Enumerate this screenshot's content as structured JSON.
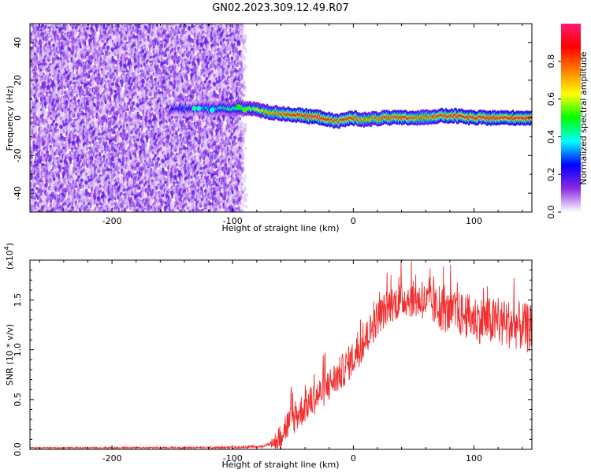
{
  "title": "GN02.2023.309.12.49.R07",
  "chart_data": [
    {
      "type": "heatmap",
      "xlabel": "Height of straight line (km)",
      "ylabel": "Frequency (Hz)",
      "xlim": [
        -268,
        148
      ],
      "ylim": [
        -50,
        50
      ],
      "x_ticks": [
        -200,
        -100,
        0,
        100
      ],
      "y_ticks": [
        -40,
        -20,
        0,
        20,
        40
      ],
      "x_tick_labels": [
        "-200",
        "-100",
        "0",
        "100"
      ],
      "y_tick_labels": [
        "-40",
        "-20",
        "0",
        "20",
        "40"
      ],
      "noise_region_x": [
        -268,
        -95
      ],
      "noise_fade_x": [
        -95,
        -88
      ],
      "ridge_start_x": -150,
      "ridge_points": [
        {
          "x": -140,
          "y": 5,
          "amp": 0.25
        },
        {
          "x": -128,
          "y": 5,
          "amp": 0.3
        },
        {
          "x": -120,
          "y": 5,
          "amp": 0.35
        },
        {
          "x": -100,
          "y": 5,
          "amp": 0.45
        },
        {
          "x": -85,
          "y": 5,
          "amp": 0.55
        },
        {
          "x": -70,
          "y": 3,
          "amp": 0.72
        },
        {
          "x": -55,
          "y": 2,
          "amp": 0.85
        },
        {
          "x": -40,
          "y": 1,
          "amp": 0.9
        },
        {
          "x": -25,
          "y": 0,
          "amp": 0.92
        },
        {
          "x": -15,
          "y": -2,
          "amp": 0.8
        },
        {
          "x": 0,
          "y": 0,
          "amp": 0.88
        },
        {
          "x": 10,
          "y": -1,
          "amp": 0.7
        },
        {
          "x": 25,
          "y": 0,
          "amp": 0.82
        },
        {
          "x": 40,
          "y": 0,
          "amp": 0.85
        },
        {
          "x": 55,
          "y": 0,
          "amp": 0.8
        },
        {
          "x": 70,
          "y": 1,
          "amp": 0.85
        },
        {
          "x": 85,
          "y": 1,
          "amp": 0.9
        },
        {
          "x": 100,
          "y": 0,
          "amp": 0.92
        },
        {
          "x": 120,
          "y": 0,
          "amp": 0.93
        },
        {
          "x": 148,
          "y": 0,
          "amp": 0.93
        }
      ],
      "colorbar": {
        "label": "Normalized spectral amplitude",
        "range": [
          0,
          1
        ],
        "ticks": [
          0.0,
          0.2,
          0.4,
          0.6,
          0.8
        ],
        "tick_labels": [
          "0.0",
          "0.2",
          "0.4",
          "0.6",
          "0.8"
        ],
        "stops": [
          "#ffffff",
          "#8a2be2",
          "#0000ff",
          "#00ffff",
          "#00ff00",
          "#ffff00",
          "#ff8000",
          "#ff0000",
          "#ff1a6e"
        ]
      }
    },
    {
      "type": "line",
      "xlabel": "Height of straight line (km)",
      "ylabel": "SNR (10 * v/v)",
      "y_multiplier_label": "(x10",
      "y_multiplier_exp": "4",
      "y_multiplier_close": ")",
      "xlim": [
        -268,
        148
      ],
      "ylim": [
        0,
        19000
      ],
      "x_ticks": [
        -200,
        -100,
        0,
        100
      ],
      "y_ticks": [
        0,
        5000,
        10000,
        15000
      ],
      "x_tick_labels": [
        "-200",
        "-100",
        "0",
        "100"
      ],
      "y_tick_labels": [
        "0.0",
        "0.5",
        "1.0",
        "1.5"
      ],
      "color": "#f03030",
      "envelope": [
        {
          "x": -268,
          "y": 150
        },
        {
          "x": -100,
          "y": 180
        },
        {
          "x": -75,
          "y": 300
        },
        {
          "x": -62,
          "y": 900
        },
        {
          "x": -58,
          "y": 2000
        },
        {
          "x": -50,
          "y": 3000
        },
        {
          "x": -40,
          "y": 4300
        },
        {
          "x": -25,
          "y": 5900
        },
        {
          "x": -10,
          "y": 7700
        },
        {
          "x": 0,
          "y": 9200
        },
        {
          "x": 10,
          "y": 11000
        },
        {
          "x": 20,
          "y": 13200
        },
        {
          "x": 30,
          "y": 14500
        },
        {
          "x": 45,
          "y": 15200
        },
        {
          "x": 60,
          "y": 14800
        },
        {
          "x": 75,
          "y": 13800
        },
        {
          "x": 90,
          "y": 13500
        },
        {
          "x": 105,
          "y": 13000
        },
        {
          "x": 120,
          "y": 12700
        },
        {
          "x": 135,
          "y": 12500
        },
        {
          "x": 148,
          "y": 12000
        }
      ],
      "noise_amplitude": [
        {
          "x": -268,
          "y": 60
        },
        {
          "x": -70,
          "y": 120
        },
        {
          "x": -60,
          "y": 1600
        },
        {
          "x": -30,
          "y": 1700
        },
        {
          "x": 0,
          "y": 1800
        },
        {
          "x": 30,
          "y": 1800
        },
        {
          "x": 60,
          "y": 1900
        },
        {
          "x": 90,
          "y": 2300
        },
        {
          "x": 120,
          "y": 2500
        },
        {
          "x": 148,
          "y": 2500
        }
      ]
    }
  ]
}
